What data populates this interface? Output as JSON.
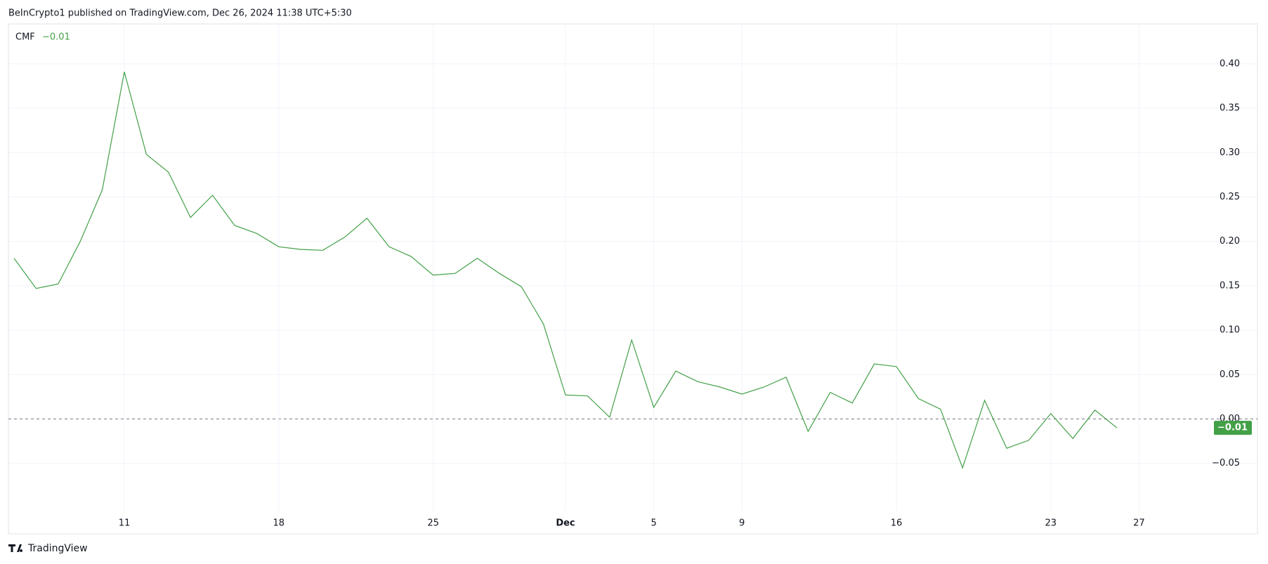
{
  "chart_data": {
    "type": "line",
    "title": "BeInCrypto1 published on TradingView.com, Dec 26, 2024 11:38 UTC+5:30",
    "source": "TradingView",
    "categories": [
      null,
      null,
      null,
      null,
      null,
      "11",
      null,
      null,
      null,
      null,
      null,
      null,
      "18",
      null,
      null,
      null,
      null,
      null,
      null,
      "25",
      null,
      null,
      null,
      null,
      null,
      "Dec",
      null,
      null,
      null,
      "5",
      null,
      null,
      null,
      "9",
      null,
      null,
      null,
      null,
      null,
      null,
      "16",
      null,
      null,
      null,
      null,
      null,
      null,
      "23",
      null,
      null,
      null,
      "27"
    ],
    "series": [
      {
        "name": "CMF",
        "color": "#43a047",
        "values": [
          0.181,
          0.147,
          0.152,
          0.2,
          0.258,
          0.391,
          0.298,
          0.278,
          0.227,
          0.252,
          0.218,
          0.209,
          0.194,
          0.191,
          0.19,
          0.205,
          0.226,
          0.194,
          0.183,
          0.162,
          0.164,
          0.181,
          0.164,
          0.149,
          0.107,
          0.027,
          0.026,
          0.002,
          0.089,
          0.013,
          0.054,
          0.042,
          0.036,
          0.028,
          0.036,
          0.047,
          -0.014,
          0.03,
          0.018,
          0.062,
          0.059,
          0.023,
          0.011,
          -0.055,
          0.021,
          -0.033,
          -0.024,
          0.006,
          -0.022,
          0.01,
          -0.01,
          null
        ],
        "value_labels": [
          null,
          null,
          null,
          null,
          null,
          null,
          null,
          null,
          null,
          null,
          null,
          null,
          null,
          null,
          null,
          null,
          null,
          null,
          null,
          null,
          null,
          null,
          null,
          null,
          null,
          null,
          null,
          null,
          null,
          null,
          null,
          null,
          null,
          null,
          null,
          null,
          null,
          null,
          null,
          null,
          null,
          null,
          null,
          null,
          null,
          null,
          null,
          null,
          null,
          null,
          "−0.01",
          null
        ]
      }
    ],
    "ylim": [
      -0.104,
      0.445
    ],
    "yticks": [
      {
        "value": -0.05,
        "label": "−0.05"
      },
      {
        "value": 0,
        "label": "0.00"
      },
      {
        "value": 0.05,
        "label": "0.05"
      },
      {
        "value": 0.1,
        "label": "0.10"
      },
      {
        "value": 0.15,
        "label": "0.15"
      },
      {
        "value": 0.2,
        "label": "0.20"
      },
      {
        "value": 0.25,
        "label": "0.25"
      },
      {
        "value": 0.3,
        "label": "0.30"
      },
      {
        "value": 0.35,
        "label": "0.35"
      },
      {
        "value": 0.4,
        "label": "0.40"
      }
    ],
    "grid": true
  }
}
